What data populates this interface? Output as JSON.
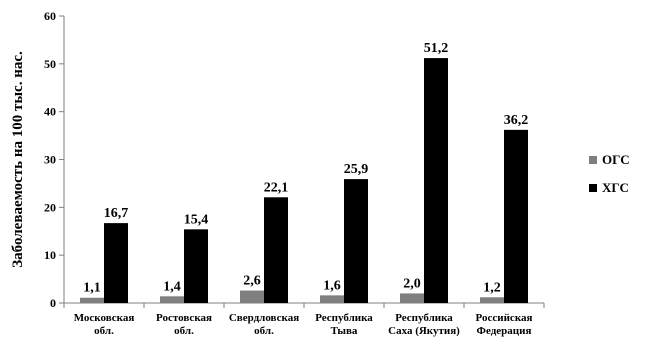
{
  "chart_data": {
    "type": "bar",
    "title": "",
    "xlabel": "",
    "ylabel": "Заболеваемость на 100 тыс. нас.",
    "ylim": [
      0,
      60
    ],
    "yticks": [
      0,
      10,
      20,
      30,
      40,
      50,
      60
    ],
    "grid": false,
    "legend_position": "right",
    "categories": [
      [
        "Московская",
        "обл."
      ],
      [
        "Ростовская",
        "обл."
      ],
      [
        "Свердловская",
        "обл."
      ],
      [
        "Республика",
        "Тыва"
      ],
      [
        "Республика",
        "Саха (Якутия)"
      ],
      [
        "Российская",
        "Федерация"
      ]
    ],
    "series": [
      {
        "name": "ОГС",
        "color": "#7f7f7f",
        "values": [
          1.1,
          1.4,
          2.6,
          1.6,
          2.0,
          1.2
        ],
        "labels": [
          "1,1",
          "1,4",
          "2,6",
          "1,6",
          "2,0",
          "1,2"
        ]
      },
      {
        "name": "ХГС",
        "color": "#000000",
        "values": [
          16.7,
          15.4,
          22.1,
          25.9,
          51.2,
          36.2
        ],
        "labels": [
          "16,7",
          "15,4",
          "22,1",
          "25,9",
          "51,2",
          "36,2"
        ]
      }
    ]
  }
}
